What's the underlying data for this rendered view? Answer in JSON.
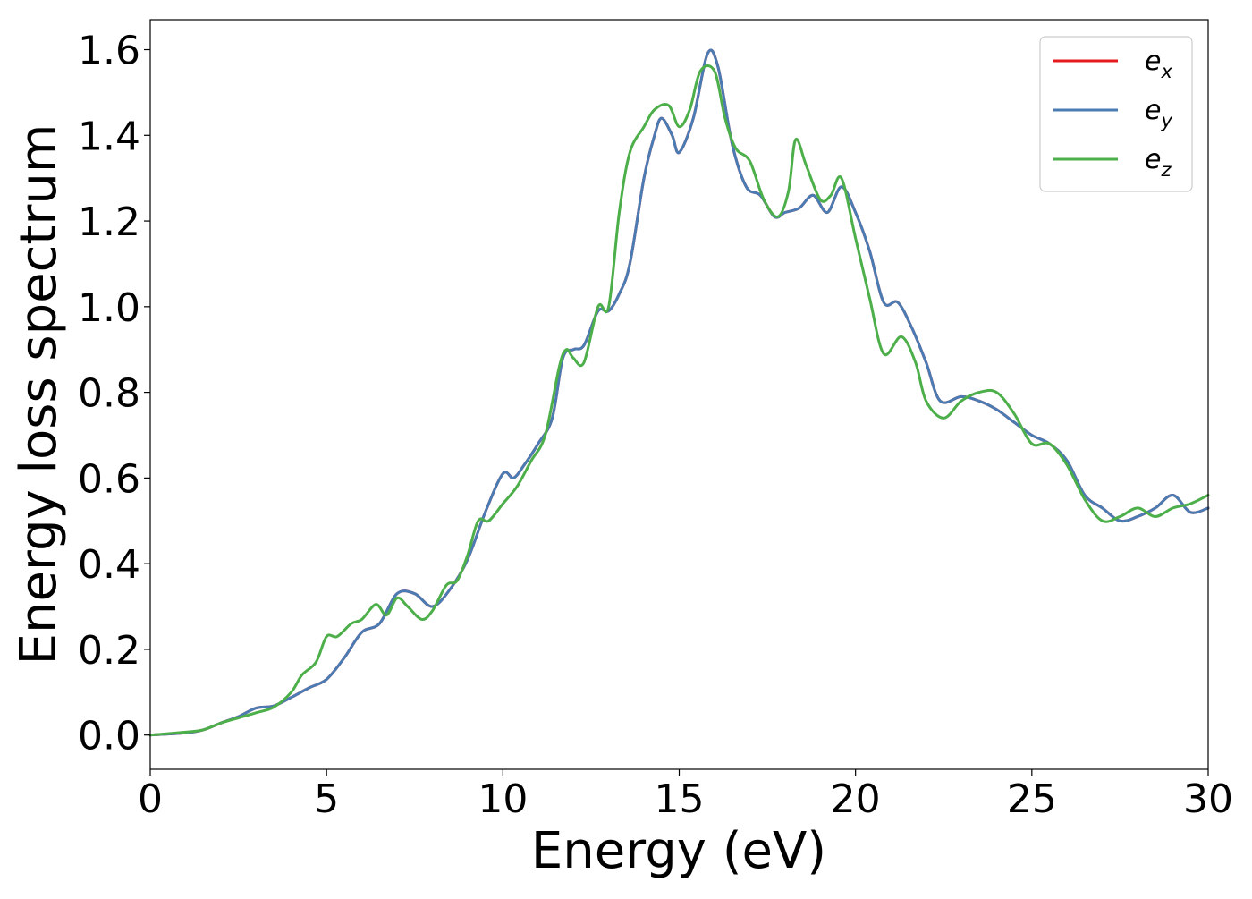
{
  "chart_data": {
    "type": "line",
    "xlabel": "Energy (eV)",
    "ylabel": "Energy loss spectrum",
    "xlim": [
      0,
      30
    ],
    "ylim": [
      -0.08,
      1.67
    ],
    "xticks": [
      0,
      5,
      10,
      15,
      20,
      25,
      30
    ],
    "xtick_labels": [
      "0",
      "5",
      "10",
      "15",
      "20",
      "25",
      "30"
    ],
    "yticks": [
      0.0,
      0.2,
      0.4,
      0.6,
      0.8,
      1.0,
      1.2,
      1.4,
      1.6
    ],
    "ytick_labels": [
      "0.0",
      "0.2",
      "0.4",
      "0.6",
      "0.8",
      "1.0",
      "1.2",
      "1.4",
      "1.6"
    ],
    "grid": false,
    "legend_position": "top-right",
    "series": [
      {
        "name": "e_x",
        "legend_base": "e",
        "legend_sub": "x",
        "color": "#e41a1c",
        "points": [
          [
            0,
            0
          ],
          [
            1,
            0.005
          ],
          [
            1.5,
            0.012
          ],
          [
            2,
            0.028
          ],
          [
            2.5,
            0.043
          ],
          [
            3,
            0.063
          ],
          [
            3.5,
            0.068
          ],
          [
            4,
            0.088
          ],
          [
            4.5,
            0.11
          ],
          [
            5,
            0.13
          ],
          [
            5.5,
            0.18
          ],
          [
            6,
            0.24
          ],
          [
            6.5,
            0.26
          ],
          [
            7,
            0.33
          ],
          [
            7.5,
            0.33
          ],
          [
            8,
            0.3
          ],
          [
            8.5,
            0.34
          ],
          [
            9,
            0.41
          ],
          [
            9.5,
            0.52
          ],
          [
            10,
            0.61
          ],
          [
            10.3,
            0.6
          ],
          [
            10.6,
            0.63
          ],
          [
            11,
            0.68
          ],
          [
            11.4,
            0.74
          ],
          [
            11.7,
            0.88
          ],
          [
            12,
            0.9
          ],
          [
            12.3,
            0.91
          ],
          [
            12.7,
            0.99
          ],
          [
            13,
            0.99
          ],
          [
            13.3,
            1.03
          ],
          [
            13.6,
            1.1
          ],
          [
            14,
            1.3
          ],
          [
            14.3,
            1.4
          ],
          [
            14.5,
            1.44
          ],
          [
            14.8,
            1.4
          ],
          [
            15,
            1.36
          ],
          [
            15.4,
            1.44
          ],
          [
            15.8,
            1.59
          ],
          [
            16.1,
            1.56
          ],
          [
            16.5,
            1.38
          ],
          [
            16.9,
            1.28
          ],
          [
            17.3,
            1.26
          ],
          [
            17.7,
            1.21
          ],
          [
            18,
            1.22
          ],
          [
            18.4,
            1.23
          ],
          [
            18.8,
            1.26
          ],
          [
            19.2,
            1.22
          ],
          [
            19.6,
            1.28
          ],
          [
            20,
            1.22
          ],
          [
            20.4,
            1.13
          ],
          [
            20.8,
            1.01
          ],
          [
            21.2,
            1.01
          ],
          [
            21.6,
            0.95
          ],
          [
            22,
            0.87
          ],
          [
            22.4,
            0.78
          ],
          [
            23,
            0.79
          ],
          [
            23.5,
            0.78
          ],
          [
            24,
            0.76
          ],
          [
            24.5,
            0.73
          ],
          [
            25,
            0.7
          ],
          [
            25.5,
            0.68
          ],
          [
            26,
            0.64
          ],
          [
            26.5,
            0.56
          ],
          [
            27,
            0.53
          ],
          [
            27.5,
            0.5
          ],
          [
            28,
            0.51
          ],
          [
            28.5,
            0.53
          ],
          [
            29,
            0.56
          ],
          [
            29.5,
            0.52
          ],
          [
            30,
            0.53
          ]
        ]
      },
      {
        "name": "e_y",
        "legend_base": "e",
        "legend_sub": "y",
        "color": "#4a7bb3",
        "points": [
          [
            0,
            0
          ],
          [
            1,
            0.005
          ],
          [
            1.5,
            0.012
          ],
          [
            2,
            0.028
          ],
          [
            2.5,
            0.043
          ],
          [
            3,
            0.063
          ],
          [
            3.5,
            0.068
          ],
          [
            4,
            0.088
          ],
          [
            4.5,
            0.11
          ],
          [
            5,
            0.13
          ],
          [
            5.5,
            0.18
          ],
          [
            6,
            0.24
          ],
          [
            6.5,
            0.26
          ],
          [
            7,
            0.33
          ],
          [
            7.5,
            0.33
          ],
          [
            8,
            0.3
          ],
          [
            8.5,
            0.34
          ],
          [
            9,
            0.41
          ],
          [
            9.5,
            0.52
          ],
          [
            10,
            0.61
          ],
          [
            10.3,
            0.6
          ],
          [
            10.6,
            0.63
          ],
          [
            11,
            0.68
          ],
          [
            11.4,
            0.74
          ],
          [
            11.7,
            0.88
          ],
          [
            12,
            0.9
          ],
          [
            12.3,
            0.91
          ],
          [
            12.7,
            0.99
          ],
          [
            13,
            0.99
          ],
          [
            13.3,
            1.03
          ],
          [
            13.6,
            1.1
          ],
          [
            14,
            1.3
          ],
          [
            14.3,
            1.4
          ],
          [
            14.5,
            1.44
          ],
          [
            14.8,
            1.4
          ],
          [
            15,
            1.36
          ],
          [
            15.4,
            1.44
          ],
          [
            15.8,
            1.59
          ],
          [
            16.1,
            1.56
          ],
          [
            16.5,
            1.38
          ],
          [
            16.9,
            1.28
          ],
          [
            17.3,
            1.26
          ],
          [
            17.7,
            1.21
          ],
          [
            18,
            1.22
          ],
          [
            18.4,
            1.23
          ],
          [
            18.8,
            1.26
          ],
          [
            19.2,
            1.22
          ],
          [
            19.6,
            1.28
          ],
          [
            20,
            1.22
          ],
          [
            20.4,
            1.13
          ],
          [
            20.8,
            1.01
          ],
          [
            21.2,
            1.01
          ],
          [
            21.6,
            0.95
          ],
          [
            22,
            0.87
          ],
          [
            22.4,
            0.78
          ],
          [
            23,
            0.79
          ],
          [
            23.5,
            0.78
          ],
          [
            24,
            0.76
          ],
          [
            24.5,
            0.73
          ],
          [
            25,
            0.7
          ],
          [
            25.5,
            0.68
          ],
          [
            26,
            0.64
          ],
          [
            26.5,
            0.56
          ],
          [
            27,
            0.53
          ],
          [
            27.5,
            0.5
          ],
          [
            28,
            0.51
          ],
          [
            28.5,
            0.53
          ],
          [
            29,
            0.56
          ],
          [
            29.5,
            0.52
          ],
          [
            30,
            0.53
          ]
        ]
      },
      {
        "name": "e_z",
        "legend_base": "e",
        "legend_sub": "z",
        "color": "#4daf4a",
        "points": [
          [
            0,
            0
          ],
          [
            1,
            0.007
          ],
          [
            1.5,
            0.012
          ],
          [
            2,
            0.028
          ],
          [
            2.5,
            0.04
          ],
          [
            3,
            0.052
          ],
          [
            3.5,
            0.065
          ],
          [
            4,
            0.1
          ],
          [
            4.3,
            0.14
          ],
          [
            4.7,
            0.17
          ],
          [
            5,
            0.23
          ],
          [
            5.3,
            0.23
          ],
          [
            5.7,
            0.26
          ],
          [
            6,
            0.27
          ],
          [
            6.4,
            0.305
          ],
          [
            6.7,
            0.28
          ],
          [
            7,
            0.32
          ],
          [
            7.3,
            0.3
          ],
          [
            7.7,
            0.27
          ],
          [
            8,
            0.29
          ],
          [
            8.4,
            0.35
          ],
          [
            8.7,
            0.36
          ],
          [
            9,
            0.42
          ],
          [
            9.3,
            0.5
          ],
          [
            9.6,
            0.5
          ],
          [
            10,
            0.54
          ],
          [
            10.4,
            0.58
          ],
          [
            10.8,
            0.64
          ],
          [
            11.2,
            0.7
          ],
          [
            11.6,
            0.86
          ],
          [
            11.8,
            0.9
          ],
          [
            12,
            0.88
          ],
          [
            12.3,
            0.87
          ],
          [
            12.7,
            1.0
          ],
          [
            13,
            1.0
          ],
          [
            13.3,
            1.22
          ],
          [
            13.6,
            1.36
          ],
          [
            14,
            1.42
          ],
          [
            14.3,
            1.46
          ],
          [
            14.7,
            1.47
          ],
          [
            15,
            1.42
          ],
          [
            15.3,
            1.46
          ],
          [
            15.6,
            1.55
          ],
          [
            16,
            1.55
          ],
          [
            16.3,
            1.44
          ],
          [
            16.6,
            1.37
          ],
          [
            17,
            1.34
          ],
          [
            17.4,
            1.25
          ],
          [
            17.8,
            1.21
          ],
          [
            18.1,
            1.27
          ],
          [
            18.3,
            1.39
          ],
          [
            18.6,
            1.33
          ],
          [
            19,
            1.25
          ],
          [
            19.3,
            1.26
          ],
          [
            19.6,
            1.3
          ],
          [
            20,
            1.16
          ],
          [
            20.4,
            1.02
          ],
          [
            20.8,
            0.89
          ],
          [
            21.3,
            0.93
          ],
          [
            21.7,
            0.87
          ],
          [
            22,
            0.78
          ],
          [
            22.5,
            0.74
          ],
          [
            23,
            0.78
          ],
          [
            23.5,
            0.8
          ],
          [
            24,
            0.8
          ],
          [
            24.5,
            0.75
          ],
          [
            25,
            0.68
          ],
          [
            25.5,
            0.68
          ],
          [
            26,
            0.63
          ],
          [
            26.5,
            0.55
          ],
          [
            27,
            0.5
          ],
          [
            27.5,
            0.51
          ],
          [
            28,
            0.53
          ],
          [
            28.5,
            0.51
          ],
          [
            29,
            0.53
          ],
          [
            29.5,
            0.54
          ],
          [
            30,
            0.56
          ]
        ]
      }
    ]
  }
}
